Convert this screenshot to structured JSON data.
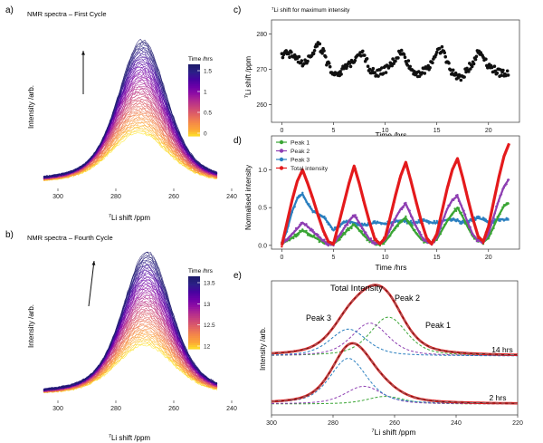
{
  "panels": {
    "a": {
      "letter": "a)",
      "title": "NMR spectra – First Cycle",
      "xlabel": "7Li shift /ppm",
      "xlabel_sup": "7",
      "xlabel_main": "Li shift /ppm",
      "ylabel": "Intensity /arb.",
      "legend_title": "Time /hrs",
      "legend_ticks": [
        "1.5",
        "1.0",
        "0.5",
        "0.0"
      ]
    },
    "b": {
      "letter": "b)",
      "title": "NMR spectra – Fourth Cycle",
      "xlabel_sup": "7",
      "xlabel_main": "Li shift /ppm",
      "ylabel": "Intensity /arb.",
      "legend_title": "Time /hrs",
      "legend_ticks": [
        "13.5",
        "13.0",
        "12.5",
        "12.0"
      ]
    },
    "c": {
      "letter": "c)",
      "title_sup": "7",
      "title_main": "Li shift for maximum intensity",
      "xlabel": "Time /hrs",
      "ylabel_sup": "7",
      "ylabel_main": "Li shift /ppm"
    },
    "d": {
      "letter": "d)",
      "xlabel": "Time /hrs",
      "ylabel": "Normalised intensity"
    },
    "e": {
      "letter": "e)",
      "xlabel_sup": "7",
      "xlabel_main": "Li shift /ppm",
      "ylabel": "Intensity /arb.",
      "labels": {
        "total": "Total Intensity",
        "peak1": "Peak 1",
        "peak2": "Peak 2",
        "peak3": "Peak 3",
        "t14": "14 hrs",
        "t2": "2 hrs"
      }
    }
  },
  "colors": {
    "peak1": "#3aa535",
    "peak2": "#8e3fb2",
    "peak3": "#2a7fbf",
    "total": "#e41a1c",
    "fit_dash": "#7a7a7a"
  },
  "chart_data": [
    {
      "id": "a",
      "type": "line",
      "title": "NMR spectra – First Cycle",
      "xlabel": "7Li shift /ppm",
      "ylabel": "Intensity /arb.",
      "x_reversed": true,
      "xlim": [
        305,
        245
      ],
      "x_ticks": [
        300,
        280,
        260,
        240
      ],
      "peak_center_ppm": 272,
      "n_spectra": 60,
      "time_range_hrs": [
        0.0,
        1.8
      ],
      "legend_ticks": [
        1.5,
        1.0,
        0.5,
        0.0
      ],
      "trend": "peak intensity increases with time (arrow up)"
    },
    {
      "id": "b",
      "type": "line",
      "title": "NMR spectra – Fourth Cycle",
      "xlabel": "7Li shift /ppm",
      "ylabel": "Intensity /arb.",
      "x_reversed": true,
      "xlim": [
        305,
        245
      ],
      "x_ticks": [
        300,
        280,
        260,
        240
      ],
      "peak_center_ppm": 270,
      "n_spectra": 60,
      "time_range_hrs": [
        11.8,
        13.8
      ],
      "legend_ticks": [
        13.5,
        13.0,
        12.5,
        12.0
      ],
      "trend": "peak intensity increases with time (arrow up)"
    },
    {
      "id": "c",
      "type": "scatter",
      "title": "7Li shift for maximum intensity",
      "xlabel": "Time /hrs",
      "ylabel": "7Li shift /ppm",
      "xlim": [
        -1,
        23
      ],
      "ylim": [
        255,
        284
      ],
      "x_ticks": [
        0,
        5,
        10,
        15,
        20
      ],
      "y_ticks": [
        260,
        270,
        280
      ],
      "series": [
        {
          "name": "7Li shift for maximum intensity",
          "x": [
            0.0,
            0.5,
            1.0,
            1.5,
            2.0,
            2.5,
            3.0,
            3.5,
            4.0,
            4.5,
            5.0,
            5.5,
            6.0,
            6.5,
            7.0,
            7.5,
            8.0,
            8.5,
            9.0,
            9.5,
            10.0,
            10.5,
            11.0,
            11.5,
            12.0,
            12.5,
            13.0,
            13.5,
            14.0,
            14.5,
            15.0,
            15.5,
            16.0,
            16.5,
            17.0,
            17.5,
            18.0,
            18.5,
            19.0,
            19.5,
            20.0,
            20.5,
            21.0,
            21.5,
            22.0
          ],
          "y": [
            274,
            275,
            274,
            273,
            272,
            273,
            275,
            277,
            275,
            271,
            269,
            269,
            270,
            271,
            273,
            275,
            274,
            270,
            269,
            269,
            270,
            271,
            273,
            275,
            273,
            270,
            269,
            269,
            270,
            272,
            275,
            276,
            272,
            269,
            268,
            268,
            270,
            272,
            275,
            274,
            271,
            270,
            269,
            269,
            269
          ]
        }
      ]
    },
    {
      "id": "d",
      "type": "line",
      "xlabel": "Time /hrs",
      "ylabel": "Normalised intensity",
      "xlim": [
        -1,
        23
      ],
      "ylim": [
        -0.05,
        1.45
      ],
      "x_ticks": [
        0,
        5,
        10,
        15,
        20
      ],
      "y_ticks": [
        0.0,
        0.5,
        1.0
      ],
      "legend": [
        "Peak 1",
        "Peak 2",
        "Peak 3",
        "Total intensity"
      ],
      "series": [
        {
          "name": "Peak 1",
          "x": [
            0.0,
            0.5,
            1.0,
            1.5,
            2.0,
            2.5,
            3.0,
            3.5,
            4.0,
            4.5,
            5.0,
            5.5,
            6.0,
            6.5,
            7.0,
            7.5,
            8.0,
            8.5,
            9.0,
            9.5,
            10.0,
            10.5,
            11.0,
            11.5,
            12.0,
            12.5,
            13.0,
            13.5,
            14.0,
            14.5,
            15.0,
            15.5,
            16.0,
            16.5,
            17.0,
            17.5,
            18.0,
            18.5,
            19.0,
            19.5,
            20.0,
            20.5,
            21.0,
            21.5,
            22.0
          ],
          "y": [
            0.02,
            0.06,
            0.1,
            0.15,
            0.2,
            0.16,
            0.12,
            0.08,
            0.04,
            0.02,
            0.02,
            0.08,
            0.15,
            0.22,
            0.28,
            0.2,
            0.12,
            0.06,
            0.03,
            0.02,
            0.05,
            0.14,
            0.24,
            0.32,
            0.36,
            0.26,
            0.16,
            0.08,
            0.04,
            0.03,
            0.08,
            0.2,
            0.32,
            0.42,
            0.5,
            0.38,
            0.24,
            0.12,
            0.06,
            0.04,
            0.1,
            0.25,
            0.4,
            0.52,
            0.56
          ]
        },
        {
          "name": "Peak 2",
          "x": [
            0.0,
            0.5,
            1.0,
            1.5,
            2.0,
            2.5,
            3.0,
            3.5,
            4.0,
            4.5,
            5.0,
            5.5,
            6.0,
            6.5,
            7.0,
            7.5,
            8.0,
            8.5,
            9.0,
            9.5,
            10.0,
            10.5,
            11.0,
            11.5,
            12.0,
            12.5,
            13.0,
            13.5,
            14.0,
            14.5,
            15.0,
            15.5,
            16.0,
            16.5,
            17.0,
            17.5,
            18.0,
            18.5,
            19.0,
            19.5,
            20.0,
            20.5,
            21.0,
            21.5,
            22.0
          ],
          "y": [
            0.02,
            0.08,
            0.15,
            0.22,
            0.3,
            0.25,
            0.18,
            0.12,
            0.06,
            0.02,
            0.02,
            0.12,
            0.22,
            0.32,
            0.4,
            0.3,
            0.18,
            0.08,
            0.03,
            0.02,
            0.08,
            0.22,
            0.36,
            0.48,
            0.55,
            0.4,
            0.25,
            0.12,
            0.05,
            0.03,
            0.1,
            0.3,
            0.48,
            0.6,
            0.65,
            0.48,
            0.3,
            0.14,
            0.06,
            0.04,
            0.15,
            0.38,
            0.6,
            0.78,
            0.88
          ]
        },
        {
          "name": "Peak 3",
          "x": [
            0.0,
            0.5,
            1.0,
            1.5,
            2.0,
            2.5,
            3.0,
            3.5,
            4.0,
            4.5,
            5.0,
            5.5,
            6.0,
            6.5,
            7.0,
            7.5,
            8.0,
            8.5,
            9.0,
            9.5,
            10.0,
            10.5,
            11.0,
            11.5,
            12.0,
            12.5,
            13.0,
            13.5,
            14.0,
            14.5,
            15.0,
            15.5,
            16.0,
            16.5,
            17.0,
            17.5,
            18.0,
            18.5,
            19.0,
            19.5,
            20.0,
            20.5,
            21.0,
            21.5,
            22.0
          ],
          "y": [
            0.02,
            0.2,
            0.45,
            0.62,
            0.68,
            0.55,
            0.45,
            0.42,
            0.38,
            0.3,
            0.2,
            0.25,
            0.3,
            0.32,
            0.3,
            0.28,
            0.27,
            0.28,
            0.3,
            0.3,
            0.28,
            0.3,
            0.32,
            0.33,
            0.32,
            0.3,
            0.3,
            0.32,
            0.33,
            0.3,
            0.3,
            0.32,
            0.34,
            0.35,
            0.33,
            0.3,
            0.32,
            0.35,
            0.36,
            0.34,
            0.3,
            0.32,
            0.35,
            0.34,
            0.34
          ]
        },
        {
          "name": "Total intensity",
          "x": [
            0.0,
            0.5,
            1.0,
            1.5,
            2.0,
            2.5,
            3.0,
            3.5,
            4.0,
            4.5,
            5.0,
            5.5,
            6.0,
            6.5,
            7.0,
            7.5,
            8.0,
            8.5,
            9.0,
            9.5,
            10.0,
            10.5,
            11.0,
            11.5,
            12.0,
            12.5,
            13.0,
            13.5,
            14.0,
            14.5,
            15.0,
            15.5,
            16.0,
            16.5,
            17.0,
            17.5,
            18.0,
            18.5,
            19.0,
            19.5,
            20.0,
            20.5,
            21.0,
            21.5,
            22.0
          ],
          "y": [
            0.0,
            0.3,
            0.6,
            0.85,
            1.0,
            0.82,
            0.62,
            0.4,
            0.2,
            0.05,
            0.02,
            0.28,
            0.55,
            0.82,
            1.05,
            0.82,
            0.55,
            0.3,
            0.08,
            0.02,
            0.1,
            0.38,
            0.66,
            0.92,
            1.1,
            0.85,
            0.58,
            0.32,
            0.1,
            0.02,
            0.15,
            0.45,
            0.75,
            1.0,
            1.15,
            0.9,
            0.62,
            0.35,
            0.12,
            0.05,
            0.25,
            0.58,
            0.9,
            1.18,
            1.35
          ]
        }
      ]
    },
    {
      "id": "e",
      "type": "line",
      "xlabel": "7Li shift /ppm",
      "ylabel": "Intensity /arb.",
      "x_reversed": true,
      "xlim": [
        300,
        220
      ],
      "x_ticks": [
        300,
        280,
        260,
        240,
        220
      ],
      "traces": [
        {
          "label": "14 hrs",
          "total_fit_peak_ppm": 268,
          "components": [
            {
              "name": "Peak 1",
              "center_ppm": 262,
              "relative_height": 0.65
            },
            {
              "name": "Peak 2",
              "center_ppm": 268,
              "relative_height": 0.55
            },
            {
              "name": "Peak 3",
              "center_ppm": 275,
              "relative_height": 0.45
            }
          ]
        },
        {
          "label": "2 hrs",
          "total_fit_peak_ppm": 274,
          "components": [
            {
              "name": "Peak 1",
              "center_ppm": 263,
              "relative_height": 0.15
            },
            {
              "name": "Peak 2",
              "center_ppm": 270,
              "relative_height": 0.35
            },
            {
              "name": "Peak 3",
              "center_ppm": 275,
              "relative_height": 0.9
            }
          ]
        }
      ]
    }
  ]
}
